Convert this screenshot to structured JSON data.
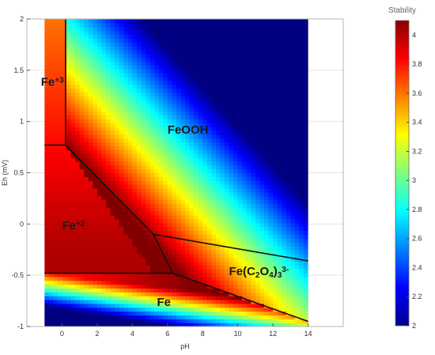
{
  "chart_data": {
    "type": "heatmap",
    "title": "",
    "xlabel": "pH",
    "ylabel": "Eh (mV)",
    "xlim": [
      -2,
      16
    ],
    "ylim": [
      -1,
      2
    ],
    "xticks": [
      "0",
      "2",
      "4",
      "6",
      "8",
      "10",
      "12",
      "14"
    ],
    "yticks": [
      "-1",
      "-0.5",
      "0",
      "0.5",
      "1",
      "1.5",
      "2"
    ],
    "grid": true,
    "heatmap_x_range": [
      -1,
      14
    ],
    "heatmap_y_range": [
      -1,
      2
    ],
    "colorbar": {
      "label": "Stability",
      "range": [
        2,
        4.1
      ],
      "ticks": [
        "2",
        "2.2",
        "2.4",
        "2.6",
        "2.8",
        "3",
        "3.2",
        "3.4",
        "3.6",
        "3.8",
        "4"
      ],
      "colormap": "jet"
    },
    "boundaries": [
      {
        "x": [
          0.2,
          0.2
        ],
        "y": [
          2.0,
          0.78
        ]
      },
      {
        "x": [
          -1,
          0.2
        ],
        "y": [
          0.77,
          0.77
        ]
      },
      {
        "x": [
          0.2,
          2.3,
          5.2,
          6.3
        ],
        "y": [
          0.77,
          0.4,
          -0.1,
          -0.48
        ]
      },
      {
        "x": [
          5.2,
          14
        ],
        "y": [
          -0.1,
          -0.36
        ]
      },
      {
        "x": [
          -1,
          6.3
        ],
        "y": [
          -0.48,
          -0.48
        ]
      },
      {
        "x": [
          6.3,
          14
        ],
        "y": [
          -0.48,
          -0.95
        ]
      }
    ],
    "regions": [
      {
        "label": "Fe",
        "sup": "+3",
        "x": -1.2,
        "y": 1.35
      },
      {
        "label": "FeOOH",
        "x": 6.0,
        "y": 0.88
      },
      {
        "label": "Fe",
        "sup": "+2",
        "x": 0.0,
        "y": -0.05
      },
      {
        "label": "Fe(C",
        "sub1": "2",
        "mid": "O",
        "sub2": "4",
        "tail": ")",
        "sub3": "3",
        "sup": "3-",
        "x": 9.5,
        "y": -0.5
      },
      {
        "label": "Fe",
        "x": 5.4,
        "y": -0.8
      }
    ]
  }
}
